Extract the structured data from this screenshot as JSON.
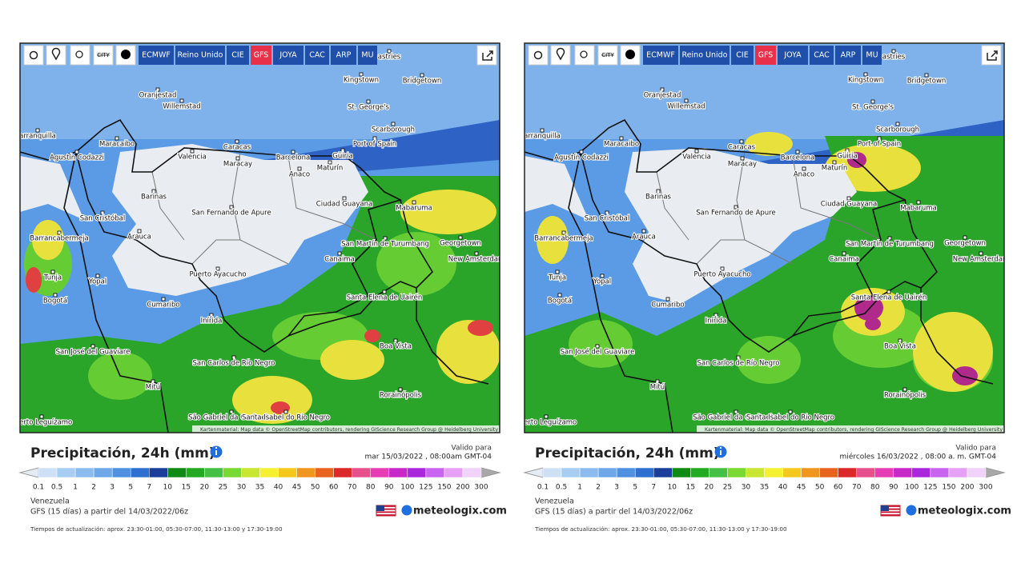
{
  "panels": [
    {
      "toolbar": {
        "city": "CITY",
        "models": [
          "ECMWF",
          "Reino Unido",
          "CIE",
          "GFS",
          "JOYA",
          "CAC",
          "ARP",
          "MU"
        ]
      },
      "cities": [
        "astries",
        "Oranjestad",
        "Willemstad",
        "Kingstown",
        "Bridgetown",
        "St. George's",
        "Scarborough",
        "Port of Spain",
        "arranquilla",
        "Maracaibo",
        "Caracas",
        "Agustín Codazzi",
        "Valencia",
        "Maracay",
        "Barcelona",
        "Güiria",
        "Maturín",
        "Anaco",
        "Barinas",
        "Ciudad Guayana",
        "San Fernando de Apure",
        "San Cristóbal",
        "Mabaruma",
        "Barrancabermeja",
        "Arauca",
        "Georgetown",
        "San Martín de Turumbang",
        "New Amsterdam",
        "Canaima",
        "Tunja",
        "Yopal",
        "Puerto Ayacucho",
        "Bogotá",
        "Santa Elena de Uairén",
        "Cumaribo",
        "Inírida",
        "Boa Vista",
        "San José del Guaviare",
        "San Carlos de Río Negro",
        "Mitú",
        "Rorainópolis",
        "São Gabriel da Cachoeira",
        "Santa Isabel do Rio Negro",
        "Puerto Leguízamo"
      ],
      "attribution": "Kartenmaterial: Map data © OpenStreetMap contributors, rendering GIScience Research Group @ Heidelberg University",
      "title": "Precipitación, 24h (mm)",
      "valid_label": "Valido para",
      "valid_date": "mar 15/03/2022 , 08:00am GMT-04",
      "legend": [
        0.1,
        0.5,
        1,
        2,
        3,
        5,
        7,
        10,
        15,
        20,
        25,
        30,
        35,
        40,
        45,
        50,
        60,
        70,
        80,
        90,
        100,
        125,
        150,
        200,
        300
      ],
      "region": "Venezuela",
      "run": "GFS (15 días) a partir del 14/03/2022/06z",
      "brand": "meteologix.com",
      "update_times": "Tiempos de actualización: aprox. 23:30-01:00, 05:30-07:00, 11:30-13:00 y 17:30-19:00"
    },
    {
      "toolbar": {
        "city": "CITY",
        "models": [
          "ECMWF",
          "Reino Unido",
          "CIE",
          "GFS",
          "JOYA",
          "CAC",
          "ARP",
          "MU"
        ]
      },
      "cities": [
        "astries",
        "Oranjestad",
        "Willemstad",
        "Kingstown",
        "Bridgetown",
        "St. George's",
        "Scarborough",
        "Port of Spain",
        "arranquilla",
        "Maracaibo",
        "Caracas",
        "Agustín Codazzi",
        "Valencia",
        "Maracay",
        "Barcelona",
        "Güiria",
        "Maturín",
        "Anaco",
        "Barinas",
        "Ciudad Guayana",
        "San Fernando de Apure",
        "San Cristóbal",
        "Mabaruma",
        "Barrancabermeja",
        "Arauca",
        "Georgetown",
        "San Martín de Turumbang",
        "New Amsterdam",
        "Canaima",
        "Tunja",
        "Yopal",
        "Puerto Ayacucho",
        "Bogotá",
        "Santa Elena de Uairén",
        "Cumaribo",
        "Inírida",
        "Boa Vista",
        "San José del Guaviare",
        "San Carlos de Río Negro",
        "Mitú",
        "Rorainópolis",
        "São Gabriel da Cachoeira",
        "Santa Isabel do Rio Negro",
        "Puerto Leguízamo"
      ],
      "attribution": "Kartenmaterial: Map data © OpenStreetMap contributors, rendering GIScience Research Group @ Heidelberg University",
      "title": "Precipitación, 24h (mm)",
      "valid_label": "Valido para",
      "valid_date": "miércoles 16/03/2022 , 08:00 a. m. GMT-04",
      "legend": [
        0.1,
        0.5,
        1,
        2,
        3,
        5,
        7,
        10,
        15,
        20,
        25,
        30,
        35,
        40,
        45,
        50,
        60,
        70,
        80,
        90,
        100,
        125,
        150,
        200,
        300
      ],
      "region": "Venezuela",
      "run": "GFS (15 días) a partir del 14/03/2022/06z",
      "brand": "meteologix.com",
      "update_times": "Tiempos de actualización: aprox. 23:30-01:00, 05:30-07:00, 11:30-13:00 y 17:30-19:00"
    }
  ]
}
